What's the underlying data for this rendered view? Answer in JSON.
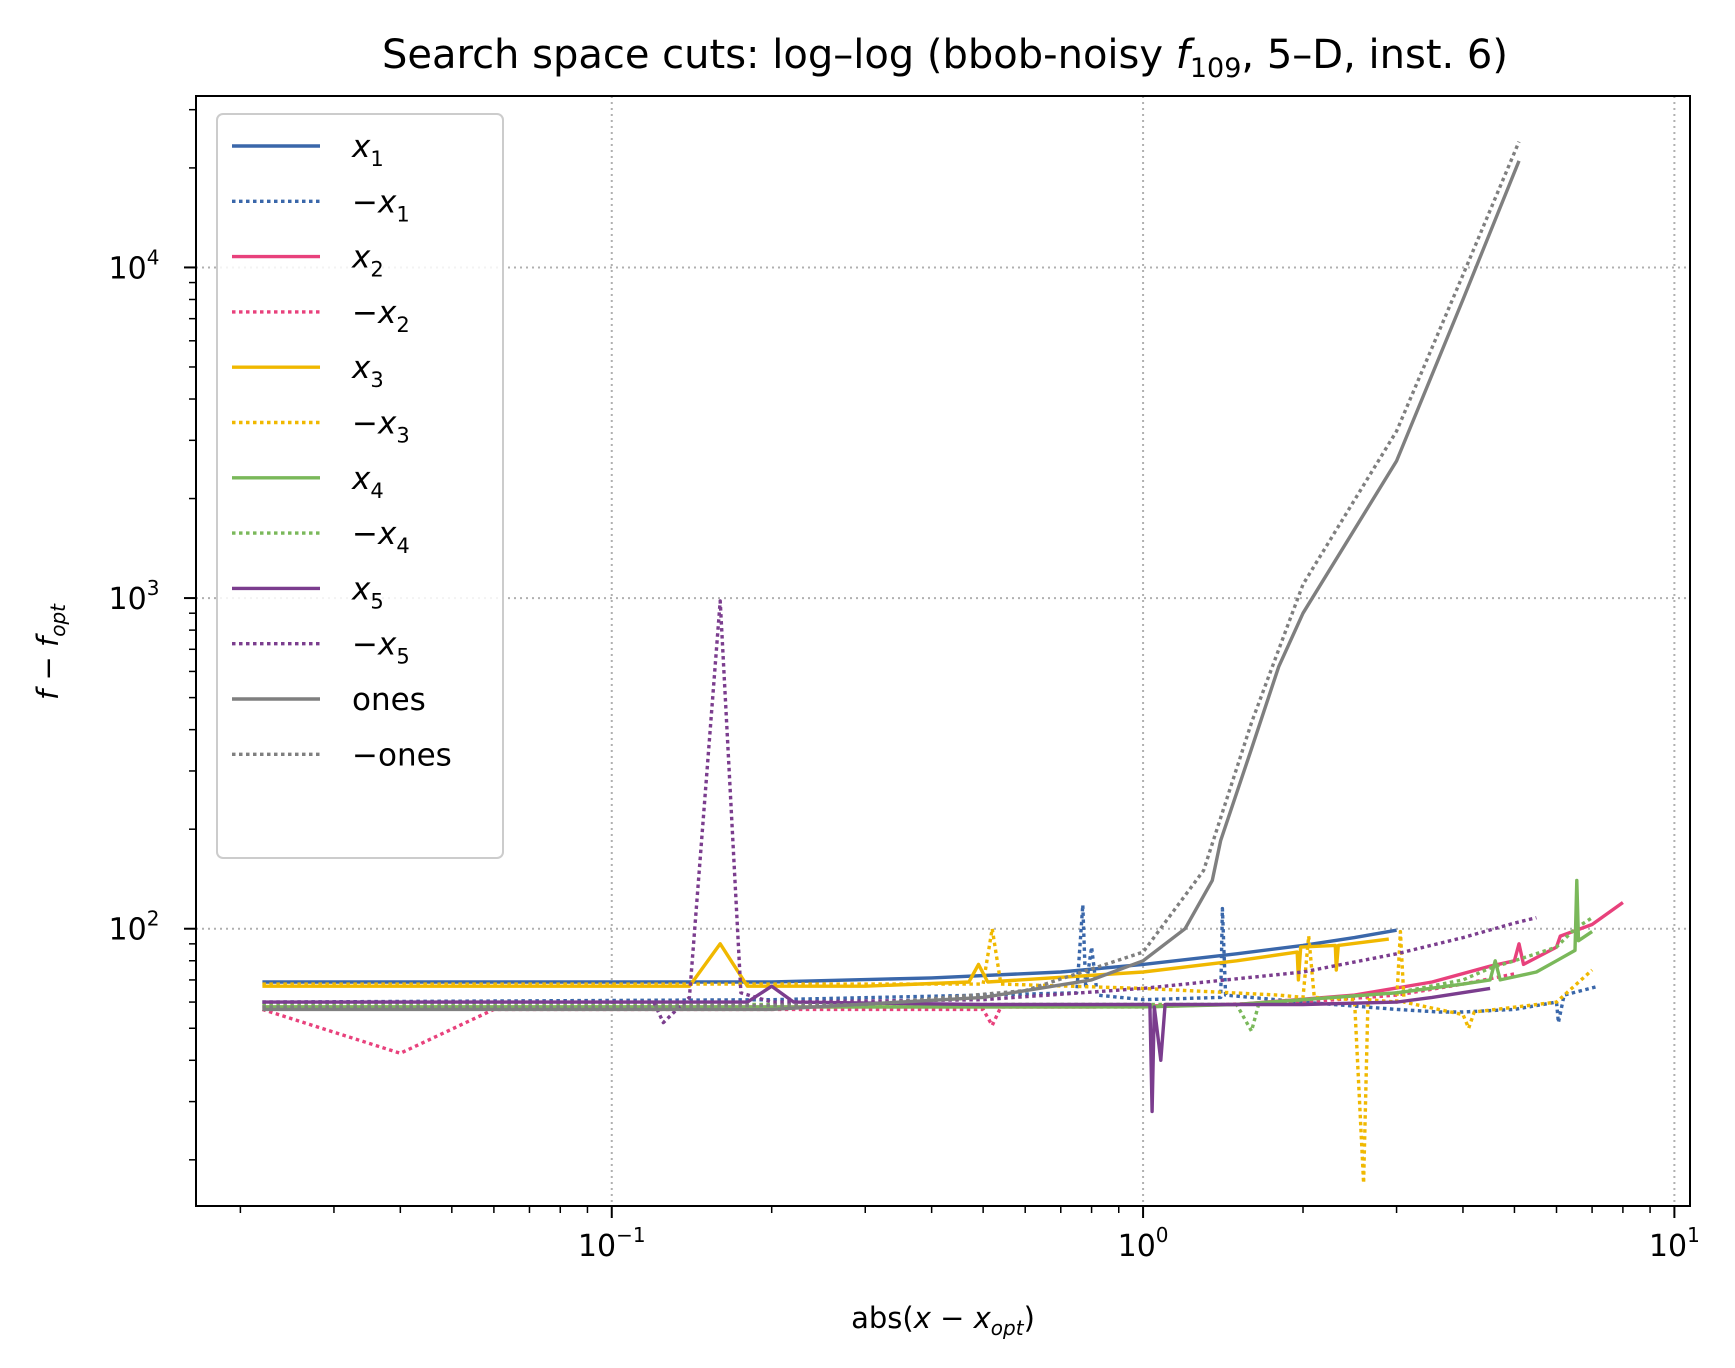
{
  "chart_data": {
    "type": "line",
    "title": "Search space cuts: log–log (bbob-noisy f109, 5–D, inst. 6)",
    "title_parts": {
      "prefix": "Search space cuts: log–log (bbob-noisy ",
      "f": "f",
      "f_sub": "109",
      "suffix": ", 5–D, inst. 6)"
    },
    "xlabel": "abs(x − x_opt)",
    "ylabel": "f − f_opt",
    "xlabel_parts": {
      "pre": "abs(",
      "var": "x",
      "op": " − ",
      "var2": "x",
      "sub": "opt",
      "post": ")"
    },
    "ylabel_parts": {
      "var": "f",
      "op": " − ",
      "var2": "f",
      "sub": "opt"
    },
    "xscale": "log",
    "yscale": "log",
    "xlim": [
      0.0165,
      10.7
    ],
    "ylim": [
      14.5,
      33000
    ],
    "grid": true,
    "legend_position": "top-left",
    "x_ticks": [
      {
        "value": 0.1,
        "base": "10",
        "exp": "−1"
      },
      {
        "value": 1,
        "base": "10",
        "exp": "0"
      },
      {
        "value": 10,
        "base": "10",
        "exp": "1"
      }
    ],
    "y_ticks": [
      {
        "value": 100,
        "base": "10",
        "exp": "2"
      },
      {
        "value": 1000,
        "base": "10",
        "exp": "3"
      },
      {
        "value": 10000,
        "base": "10",
        "exp": "4"
      }
    ],
    "series": [
      {
        "name": "x1",
        "label_main": "x",
        "label_sub": "1",
        "negated": false,
        "color": "#3a67aa",
        "dash": "solid",
        "points": [
          [
            0.022,
            69
          ],
          [
            0.1,
            69
          ],
          [
            0.2,
            69
          ],
          [
            0.4,
            71
          ],
          [
            0.7,
            74
          ],
          [
            1.0,
            78
          ],
          [
            1.5,
            84
          ],
          [
            2.0,
            89
          ],
          [
            2.5,
            94
          ],
          [
            3.0,
            99
          ]
        ]
      },
      {
        "name": "-x1",
        "label_main": "x",
        "label_sub": "1",
        "negated": true,
        "color": "#3a67aa",
        "dash": "dotted",
        "points": [
          [
            0.022,
            60
          ],
          [
            0.2,
            61
          ],
          [
            0.5,
            63
          ],
          [
            0.75,
            64
          ],
          [
            0.77,
            118
          ],
          [
            0.78,
            66
          ],
          [
            0.8,
            88
          ],
          [
            0.82,
            63
          ],
          [
            1.0,
            61
          ],
          [
            1.4,
            62
          ],
          [
            1.41,
            115
          ],
          [
            1.43,
            63
          ],
          [
            2.0,
            60
          ],
          [
            3.0,
            57
          ],
          [
            3.6,
            56
          ],
          [
            4.0,
            56
          ],
          [
            5.0,
            57
          ],
          [
            6.0,
            60
          ],
          [
            6.05,
            52
          ],
          [
            6.2,
            63
          ],
          [
            7.2,
            67
          ]
        ]
      },
      {
        "name": "x2",
        "label_main": "x",
        "label_sub": "2",
        "negated": false,
        "color": "#e8417c",
        "dash": "solid",
        "points": [
          [
            0.022,
            58
          ],
          [
            0.3,
            58
          ],
          [
            0.8,
            58
          ],
          [
            1.5,
            59
          ],
          [
            2.5,
            63
          ],
          [
            3.5,
            69
          ],
          [
            4.5,
            77
          ],
          [
            5.0,
            80
          ],
          [
            5.1,
            90
          ],
          [
            5.2,
            78
          ],
          [
            6.0,
            88
          ],
          [
            6.1,
            95
          ],
          [
            7.0,
            103
          ],
          [
            8.0,
            120
          ]
        ]
      },
      {
        "name": "-x2",
        "label_main": "x",
        "label_sub": "2",
        "negated": true,
        "color": "#e8417c",
        "dash": "dotted",
        "points": [
          [
            0.022,
            57
          ],
          [
            0.04,
            42
          ],
          [
            0.06,
            57
          ],
          [
            0.2,
            57
          ],
          [
            0.5,
            57
          ],
          [
            0.52,
            51
          ],
          [
            0.54,
            58
          ],
          [
            1.0,
            58
          ],
          [
            2.0,
            60
          ],
          [
            3.0,
            63
          ],
          [
            4.0,
            68
          ],
          [
            5.0,
            73
          ]
        ]
      },
      {
        "name": "x3",
        "label_main": "x",
        "label_sub": "3",
        "negated": false,
        "color": "#f0b800",
        "dash": "solid",
        "points": [
          [
            0.022,
            67
          ],
          [
            0.14,
            67
          ],
          [
            0.16,
            90
          ],
          [
            0.18,
            67
          ],
          [
            0.3,
            67
          ],
          [
            0.47,
            69
          ],
          [
            0.49,
            78
          ],
          [
            0.51,
            69
          ],
          [
            1.0,
            74
          ],
          [
            1.5,
            80
          ],
          [
            1.95,
            85
          ],
          [
            1.96,
            70
          ],
          [
            1.98,
            88
          ],
          [
            2.3,
            89
          ],
          [
            2.31,
            75
          ],
          [
            2.33,
            89
          ],
          [
            2.9,
            93
          ]
        ]
      },
      {
        "name": "-x3",
        "label_main": "x",
        "label_sub": "3",
        "negated": true,
        "color": "#f0b800",
        "dash": "dotted",
        "points": [
          [
            0.022,
            68
          ],
          [
            0.5,
            68
          ],
          [
            0.52,
            100
          ],
          [
            0.54,
            68
          ],
          [
            1.0,
            66
          ],
          [
            1.8,
            63
          ],
          [
            2.0,
            62
          ],
          [
            2.05,
            95
          ],
          [
            2.1,
            62
          ],
          [
            2.5,
            61
          ],
          [
            2.6,
            17
          ],
          [
            2.65,
            61
          ],
          [
            3.0,
            60
          ],
          [
            3.05,
            98
          ],
          [
            3.1,
            60
          ],
          [
            4.0,
            55
          ],
          [
            4.1,
            50
          ],
          [
            4.2,
            56
          ],
          [
            6.0,
            60
          ],
          [
            7.0,
            75
          ]
        ]
      },
      {
        "name": "x4",
        "label_main": "x",
        "label_sub": "4",
        "negated": false,
        "color": "#7ab85a",
        "dash": "solid",
        "points": [
          [
            0.022,
            58
          ],
          [
            0.5,
            58
          ],
          [
            1.0,
            58
          ],
          [
            1.5,
            59
          ],
          [
            2.0,
            61
          ],
          [
            3.0,
            64
          ],
          [
            4.0,
            68
          ],
          [
            4.5,
            70
          ],
          [
            4.6,
            80
          ],
          [
            4.7,
            70
          ],
          [
            5.5,
            74
          ],
          [
            6.0,
            80
          ],
          [
            6.5,
            86
          ],
          [
            6.55,
            140
          ],
          [
            6.6,
            92
          ],
          [
            7.0,
            98
          ]
        ]
      },
      {
        "name": "-x4",
        "label_main": "x",
        "label_sub": "4",
        "negated": true,
        "color": "#7ab85a",
        "dash": "dotted",
        "points": [
          [
            0.022,
            59
          ],
          [
            0.5,
            59
          ],
          [
            1.0,
            59
          ],
          [
            1.5,
            59
          ],
          [
            1.6,
            49
          ],
          [
            1.65,
            59
          ],
          [
            2.0,
            61
          ],
          [
            3.0,
            64
          ],
          [
            4.0,
            70
          ],
          [
            4.5,
            76
          ],
          [
            5.0,
            80
          ],
          [
            6.0,
            88
          ],
          [
            6.5,
            100
          ],
          [
            7.0,
            108
          ]
        ]
      },
      {
        "name": "x5",
        "label_main": "x",
        "label_sub": "5",
        "negated": false,
        "color": "#7b3d8e",
        "dash": "solid",
        "points": [
          [
            0.022,
            60
          ],
          [
            0.18,
            60
          ],
          [
            0.2,
            67
          ],
          [
            0.22,
            60
          ],
          [
            0.5,
            59
          ],
          [
            1.0,
            59
          ],
          [
            1.03,
            59
          ],
          [
            1.04,
            28
          ],
          [
            1.05,
            58
          ],
          [
            1.08,
            40
          ],
          [
            1.1,
            59
          ],
          [
            2.0,
            59
          ],
          [
            3.0,
            60
          ],
          [
            3.5,
            62
          ],
          [
            4.5,
            66
          ]
        ]
      },
      {
        "name": "-x5",
        "label_main": "x",
        "label_sub": "5",
        "negated": true,
        "color": "#7b3d8e",
        "dash": "dotted",
        "points": [
          [
            0.022,
            60
          ],
          [
            0.12,
            60
          ],
          [
            0.125,
            52
          ],
          [
            0.14,
            62
          ],
          [
            0.16,
            980
          ],
          [
            0.175,
            64
          ],
          [
            0.2,
            60
          ],
          [
            0.5,
            61
          ],
          [
            1.0,
            66
          ],
          [
            2.0,
            74
          ],
          [
            3.0,
            84
          ],
          [
            4.0,
            94
          ],
          [
            5.0,
            104
          ],
          [
            5.5,
            108
          ]
        ]
      },
      {
        "name": "ones",
        "label_main": "ones",
        "label_sub": "",
        "negated": false,
        "color": "#7f7f7f",
        "dash": "solid",
        "points": [
          [
            0.022,
            57
          ],
          [
            0.1,
            57
          ],
          [
            0.2,
            57
          ],
          [
            0.5,
            62
          ],
          [
            0.8,
            70
          ],
          [
            1.0,
            80
          ],
          [
            1.2,
            100
          ],
          [
            1.35,
            140
          ],
          [
            1.4,
            185
          ],
          [
            1.6,
            350
          ],
          [
            1.8,
            620
          ],
          [
            2.0,
            900
          ],
          [
            3.0,
            2600
          ],
          [
            4.0,
            8000
          ],
          [
            5.1,
            21000
          ]
        ]
      },
      {
        "name": "-ones",
        "label_main": "ones",
        "label_sub": "",
        "negated": true,
        "color": "#7f7f7f",
        "dash": "dotted",
        "points": [
          [
            0.022,
            58
          ],
          [
            0.1,
            58
          ],
          [
            0.3,
            59
          ],
          [
            0.6,
            65
          ],
          [
            1.0,
            85
          ],
          [
            1.3,
            150
          ],
          [
            1.6,
            420
          ],
          [
            2.0,
            1100
          ],
          [
            3.0,
            3200
          ],
          [
            4.0,
            9500
          ],
          [
            5.1,
            24000
          ]
        ]
      }
    ]
  }
}
